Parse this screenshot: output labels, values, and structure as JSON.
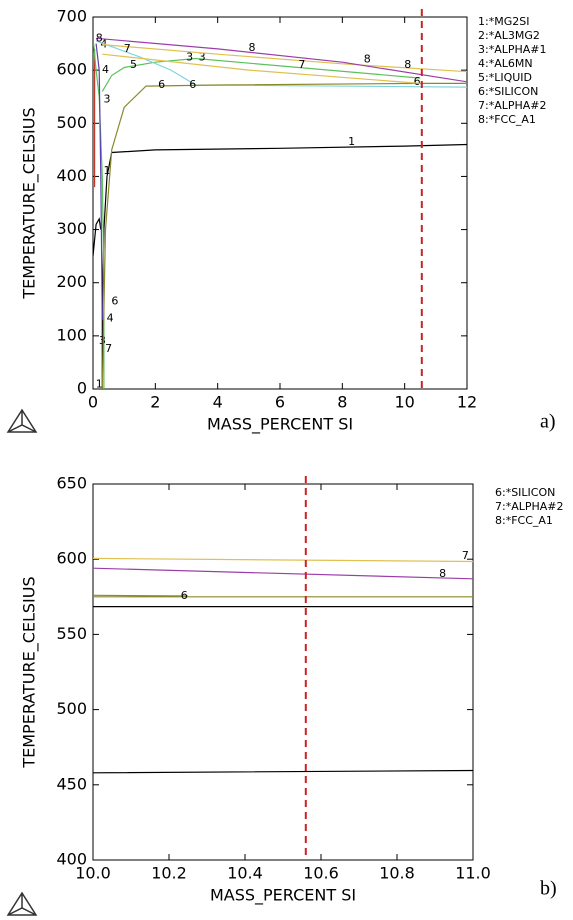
{
  "chart_data": [
    {
      "type": "line",
      "xlabel": "MASS_PERCENT SI",
      "ylabel": "TEMPERATURE_CELSIUS",
      "caption": "a)",
      "xlim": [
        0,
        12
      ],
      "ylim": [
        0,
        700
      ],
      "xticks": [
        0,
        2,
        4,
        6,
        8,
        10,
        12
      ],
      "yticks": [
        0,
        100,
        200,
        300,
        400,
        500,
        600,
        700
      ],
      "vline": {
        "x": 10.55,
        "color": "#cc2222"
      },
      "series": [
        {
          "name": "1:*MG2SI",
          "color": "#000000",
          "x": [
            0.3,
            0.3,
            0.35,
            0.45,
            0.6,
            2,
            6,
            10,
            12,
            null,
            0,
            0.1,
            0.2,
            0.25
          ],
          "values": [
            0,
            150,
            300,
            400,
            445,
            450,
            453,
            457,
            460,
            null,
            250,
            310,
            320,
            300
          ],
          "labels": [
            {
              "text": "1",
              "x": 8.3,
              "y": 465
            },
            {
              "text": "1",
              "x": 0.45,
              "y": 410
            },
            {
              "text": "1",
              "x": 0.2,
              "y": 8
            }
          ]
        },
        {
          "name": "2:*AL3MG2",
          "color": "#c0392b",
          "x": [
            0.05,
            0.05
          ],
          "values": [
            380,
            640
          ],
          "labels": []
        },
        {
          "name": "3:*ALPHA#1",
          "color": "#5cc05c",
          "x": [
            0.02,
            0.1,
            0.2,
            0.3,
            0.35,
            0.35,
            null,
            0.3,
            0.6,
            1.0,
            2,
            3.3,
            6,
            10.5
          ],
          "values": [
            650,
            600,
            550,
            400,
            200,
            0,
            null,
            560,
            590,
            605,
            615,
            622,
            608,
            585
          ],
          "labels": [
            {
              "text": "3",
              "x": 0.45,
              "y": 545
            },
            {
              "text": "3",
              "x": 3.1,
              "y": 624
            },
            {
              "text": "3",
              "x": 3.5,
              "y": 624
            },
            {
              "text": "3",
              "x": 0.3,
              "y": 90
            }
          ]
        },
        {
          "name": "4:*AL6MN",
          "color": "#5a3fb0",
          "x": [
            0.1,
            0.2,
            0.25,
            0.3
          ],
          "values": [
            650,
            600,
            400,
            130
          ],
          "labels": [
            {
              "text": "4",
              "x": 0.35,
              "y": 648
            },
            {
              "text": "4",
              "x": 0.4,
              "y": 600
            },
            {
              "text": "4",
              "x": 0.55,
              "y": 133
            }
          ]
        },
        {
          "name": "5:*LIQUID",
          "color": "#7fd4e0",
          "x": [
            0.1,
            1.5,
            2.5,
            3.3,
            12
          ],
          "values": [
            655,
            625,
            600,
            572,
            568
          ],
          "labels": [
            {
              "text": "5",
              "x": 1.3,
              "y": 610
            }
          ]
        },
        {
          "name": "6:*SILICON",
          "color": "#8a8a2a",
          "x": [
            0.3,
            0.4,
            0.6,
            1.0,
            1.7,
            4,
            10.5,
            12
          ],
          "values": [
            0,
            300,
            450,
            530,
            570,
            572,
            575,
            575
          ],
          "labels": [
            {
              "text": "6",
              "x": 2.2,
              "y": 572
            },
            {
              "text": "6",
              "x": 3.2,
              "y": 572
            },
            {
              "text": "6",
              "x": 0.7,
              "y": 165
            },
            {
              "text": "6",
              "x": 10.4,
              "y": 578
            }
          ]
        },
        {
          "name": "7:*ALPHA#2",
          "color": "#e0c050",
          "x": [
            0.3,
            4,
            8,
            12,
            null,
            0.3,
            5,
            10.5
          ],
          "values": [
            648,
            630,
            612,
            597,
            null,
            630,
            600,
            575
          ],
          "labels": [
            {
              "text": "7",
              "x": 1.1,
              "y": 640
            },
            {
              "text": "7",
              "x": 6.7,
              "y": 610
            },
            {
              "text": "7",
              "x": 0.5,
              "y": 75
            }
          ]
        },
        {
          "name": "8:*FCC_A1",
          "color": "#9b3fa8",
          "x": [
            0.1,
            4,
            8,
            12
          ],
          "values": [
            660,
            640,
            615,
            578
          ],
          "labels": [
            {
              "text": "8",
              "x": 0.2,
              "y": 660
            },
            {
              "text": "8",
              "x": 5.1,
              "y": 642
            },
            {
              "text": "8",
              "x": 8.8,
              "y": 620
            },
            {
              "text": "8",
              "x": 10.1,
              "y": 610
            }
          ]
        }
      ]
    },
    {
      "type": "line",
      "xlabel": "MASS_PERCENT SI",
      "ylabel": "TEMPERATURE_CELSIUS",
      "caption": "b)",
      "xlim": [
        10,
        11
      ],
      "ylim": [
        400,
        650
      ],
      "xticks": [
        {
          "value": 10,
          "label": "10.0"
        },
        10.2,
        10.4,
        10.6,
        10.8,
        {
          "value": 11,
          "label": "11.0"
        }
      ],
      "yticks": [
        400,
        450,
        500,
        550,
        600,
        650
      ],
      "vline": {
        "x": 10.56,
        "color": "#cc2222"
      },
      "series": [
        {
          "color": "#000000",
          "x": [
            10,
            11,
            null,
            10,
            11
          ],
          "values": [
            458,
            459.5,
            null,
            568.5,
            568.5
          ],
          "labels": []
        },
        {
          "name": "6:*SILICON",
          "color": "#8a8a2a",
          "x": [
            10,
            11,
            null,
            10,
            10.25
          ],
          "values": [
            575,
            575,
            null,
            576,
            575.5
          ],
          "labels": [
            {
              "text": "6",
              "x": 10.24,
              "y": 575.5
            }
          ]
        },
        {
          "name": "7:*ALPHA#2",
          "color": "#e0c050",
          "x": [
            10,
            11
          ],
          "values": [
            600.5,
            598.5
          ],
          "labels": [
            {
              "text": "7",
              "x": 10.98,
              "y": 602
            }
          ]
        },
        {
          "name": "8:*FCC_A1",
          "color": "#9b3fa8",
          "x": [
            10,
            11
          ],
          "values": [
            594,
            587
          ],
          "labels": [
            {
              "text": "8",
              "x": 10.92,
              "y": 590
            }
          ]
        }
      ]
    }
  ]
}
